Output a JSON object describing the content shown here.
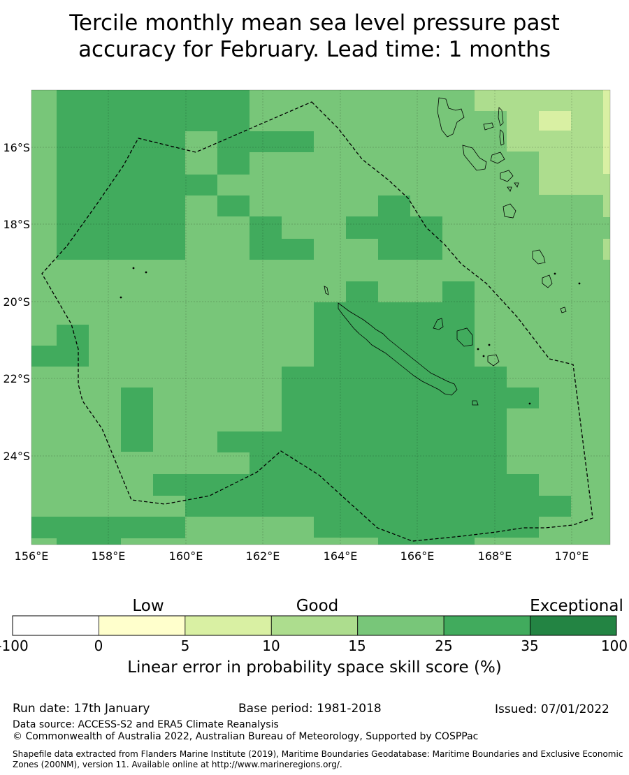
{
  "title": {
    "line1": "Tercile monthly mean sea level pressure past",
    "line2": "accuracy for February. Lead time: 1 months"
  },
  "map": {
    "lat_ticks": [
      "16°S",
      "18°S",
      "20°S",
      "22°S",
      "24°S"
    ],
    "lon_ticks": [
      "156°E",
      "158°E",
      "160°E",
      "162°E",
      "164°E",
      "166°E",
      "168°E",
      "170°E"
    ],
    "extent": {
      "lon_min": 156,
      "lon_max": 171,
      "lat_north": -14.5,
      "lat_south": -26.3
    },
    "grid_on": true,
    "boundary_style": "dashed",
    "land_outline_color": "#000000",
    "cell_size_deg": 0.833
  },
  "colorbar": {
    "categories": [
      "Low",
      "Good",
      "Exceptional"
    ],
    "ticks": [
      "-100",
      "0",
      "5",
      "10",
      "15",
      "25",
      "35",
      "100"
    ],
    "colors": [
      "#ffffff",
      "#ffffcc",
      "#d9f0a3",
      "#addd8e",
      "#78c679",
      "#41ab5d",
      "#238443"
    ],
    "label": "Linear error in probability space skill score (%)"
  },
  "footer": {
    "run_date": "Run date: 17th January",
    "base_period": "Base period: 1981-2018",
    "issued": "Issued: 07/01/2022",
    "data_source": "Data source: ACCESS-S2 and ERA5 Climate Reanalysis",
    "copyright": "© Commonwealth of Australia 2022, Australian Bureau of Meteorology, Supported by COSPPac",
    "shapefile_line1": "Shapefile data extracted from Flanders Marine Institute (2019), Maritime Boundaries Geodatabase: Maritime Boundaries and Exclusive Economic",
    "shapefile_line2": "Zones (200NM), version 11. Available online at http://www.marineregions.org/."
  }
}
